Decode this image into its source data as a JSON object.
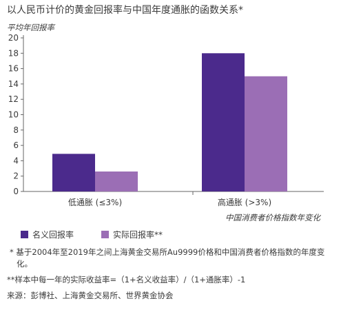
{
  "title": "以人民币计价的黄金回报率与中国年度通胀的函数关系*",
  "colors": {
    "nominal": "#4b2a8c",
    "real": "#9b6eb5",
    "axis": "#666666",
    "grid": "#dddddd"
  },
  "chart_data": {
    "type": "bar",
    "ylabel": "平均年回报率",
    "xnote": "中国消费者价格指数年变化",
    "ylim": [
      0,
      20
    ],
    "yticks": [
      0,
      2,
      4,
      6,
      8,
      10,
      12,
      14,
      16,
      18,
      20
    ],
    "categories": [
      "低通胀 (≤3%)",
      "高通胀 (>3%)"
    ],
    "series": [
      {
        "name": "名义回报率",
        "values": [
          4.9,
          18.0
        ]
      },
      {
        "name": "实际回报率**",
        "values": [
          2.6,
          15.0
        ]
      }
    ],
    "grid": false,
    "legend_position": "bottom-left"
  },
  "notes": {
    "note1": "* 基于2004年至2019年之间上海黄金交易所Au9999价格和中国消费者价格指数的年度变化。",
    "note2": "**样本中每一年的实际收益率=（1+名义收益率）/（1+通胀率）-1",
    "source": "来源：彭博社、上海黄金交易所、世界黄金协会"
  }
}
